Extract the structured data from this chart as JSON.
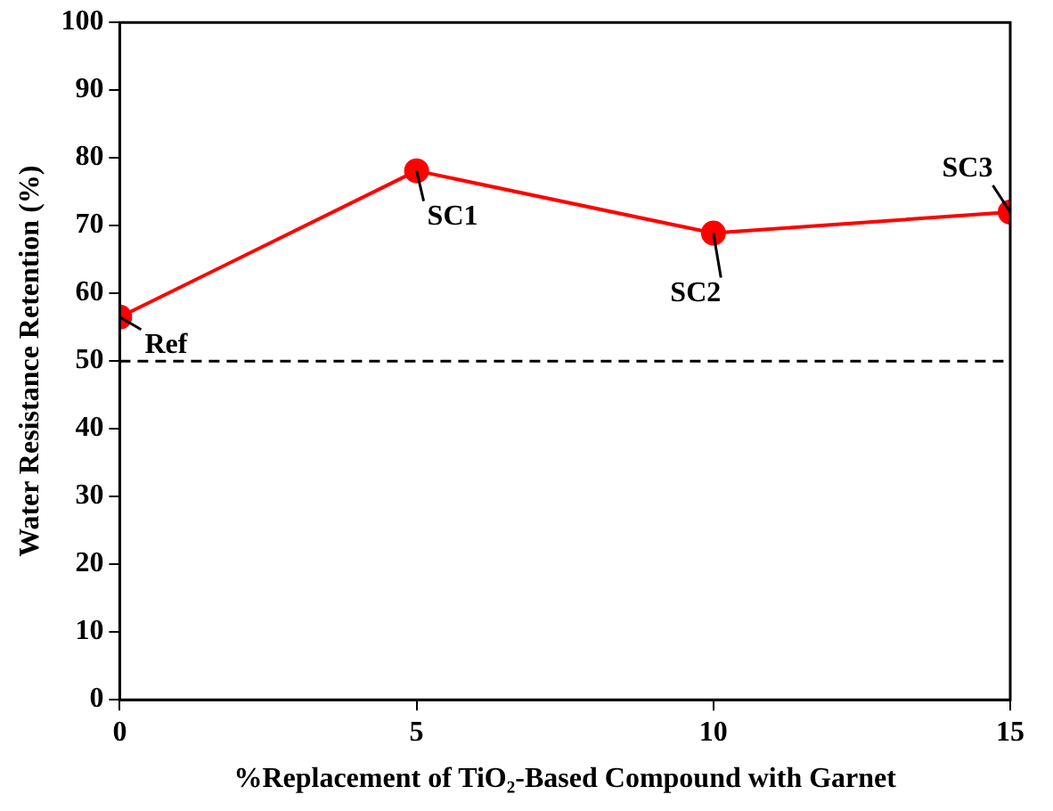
{
  "chart_data": {
    "type": "line",
    "xlabel": "%Replacement of TiO₂-Based Compound with Garnet",
    "ylabel": "Water Resistance Retention (%)",
    "x": [
      0,
      5,
      10,
      15
    ],
    "series": [
      {
        "color": "#ff0000",
        "values": [
          56.5,
          78.1,
          68.9,
          72.0
        ]
      }
    ],
    "xlim": [
      0,
      15
    ],
    "xticks": [
      0,
      5,
      10,
      15
    ],
    "ylim": [
      0,
      100
    ],
    "yticks": [
      0,
      10,
      20,
      30,
      40,
      50,
      60,
      70,
      80,
      90,
      100
    ],
    "grid": false,
    "legend": false,
    "marker": "circle",
    "line_style": "solid",
    "ref_lines": [
      {
        "axis": "y",
        "value": 50,
        "color": "#000000",
        "line_style": "dashed"
      }
    ],
    "annotations": [
      {
        "text": "Ref",
        "x": 0,
        "y": 56.5
      },
      {
        "text": "SC1",
        "x": 5,
        "y": 78.1
      },
      {
        "text": "SC2",
        "x": 10,
        "y": 68.9
      },
      {
        "text": "SC3",
        "x": 15,
        "y": 72.0
      }
    ]
  }
}
